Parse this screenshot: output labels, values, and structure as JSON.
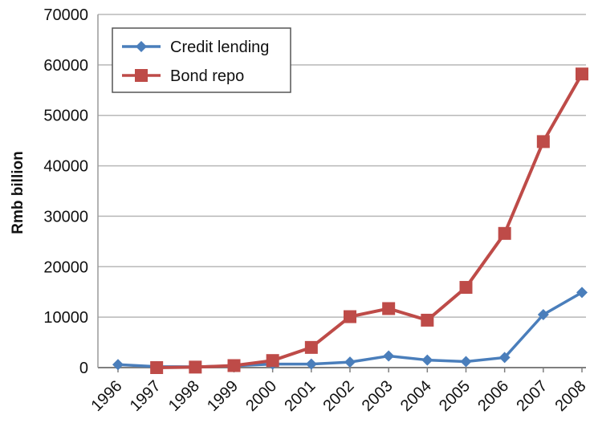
{
  "chart_data": {
    "type": "line",
    "x": [
      "1996",
      "1997",
      "1998",
      "1999",
      "2000",
      "2001",
      "2002",
      "2003",
      "2004",
      "2005",
      "2006",
      "2007",
      "2008"
    ],
    "series": [
      {
        "name": "Credit lending",
        "color": "#4a7ebb",
        "marker": "diamond",
        "values": [
          600,
          200,
          150,
          350,
          700,
          700,
          1100,
          2300,
          1500,
          1200,
          2000,
          10500,
          14900
        ]
      },
      {
        "name": "Bond repo",
        "color": "#be4b48",
        "marker": "square",
        "values": [
          null,
          0,
          100,
          400,
          1400,
          4000,
          10100,
          11700,
          9400,
          15900,
          26600,
          44800,
          58200
        ]
      }
    ],
    "ylabel": "Rmb billion",
    "ylim": [
      0,
      70000
    ],
    "yticks": [
      "0",
      "10000",
      "20000",
      "30000",
      "40000",
      "50000",
      "60000",
      "70000"
    ],
    "grid": true,
    "legend_position": "top-left"
  }
}
